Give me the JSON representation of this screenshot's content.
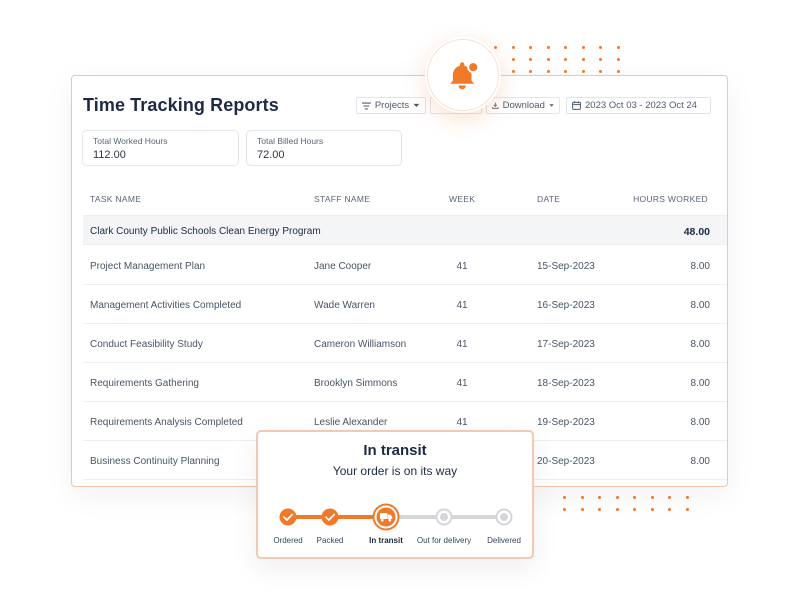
{
  "report": {
    "title": "Time Tracking Reports",
    "toolbar": {
      "projects_label": "Projects",
      "download_label": "Download",
      "date_range": "2023 Oct 03 - 2023 Oct 24"
    },
    "stats": [
      {
        "label": "Total Worked Hours",
        "value": "112.00"
      },
      {
        "label": "Total Billed Hours",
        "value": "72.00"
      }
    ],
    "columns": {
      "task": "TASK NAME",
      "staff": "STAFF NAME",
      "week": "WEEK",
      "date": "DATE",
      "hours": "HOURS WORKED"
    },
    "group": {
      "name": "Clark County Public Schools Clean Energy Program",
      "total": "48.00"
    },
    "rows": [
      {
        "task": "Project Management Plan",
        "staff": "Jane Cooper",
        "week": "41",
        "date": "15-Sep-2023",
        "hours": "8.00"
      },
      {
        "task": "Management Activities Completed",
        "staff": "Wade Warren",
        "week": "41",
        "date": "16-Sep-2023",
        "hours": "8.00"
      },
      {
        "task": "Conduct Feasibility Study",
        "staff": "Cameron Williamson",
        "week": "41",
        "date": "17-Sep-2023",
        "hours": "8.00"
      },
      {
        "task": "Requirements Gathering",
        "staff": "Brooklyn Simmons",
        "week": "41",
        "date": "18-Sep-2023",
        "hours": "8.00"
      },
      {
        "task": "Requirements Analysis Completed",
        "staff": "Leslie Alexander",
        "week": "41",
        "date": "19-Sep-2023",
        "hours": "8.00"
      },
      {
        "task": "Business Continuity Planning",
        "staff": "",
        "week": "",
        "date": "20-Sep-2023",
        "hours": "8.00"
      }
    ]
  },
  "shipment": {
    "title": "In transit",
    "subtitle": "Your order is on its way",
    "current_step": 2,
    "steps": [
      {
        "label": "Ordered",
        "status": "done"
      },
      {
        "label": "Packed",
        "status": "done"
      },
      {
        "label": "In transit",
        "status": "current"
      },
      {
        "label": "Out for delivery",
        "status": "pending"
      },
      {
        "label": "Delivered",
        "status": "pending"
      }
    ]
  },
  "icons": {
    "notification": "bell-icon",
    "projects": "filter-lines-icon",
    "download": "download-icon",
    "date": "calendar-icon",
    "step_done": "check-icon",
    "step_current": "truck-icon"
  },
  "colors": {
    "accent": "#f07a2a",
    "title": "#1d2a44",
    "pending": "#d4d6da"
  }
}
